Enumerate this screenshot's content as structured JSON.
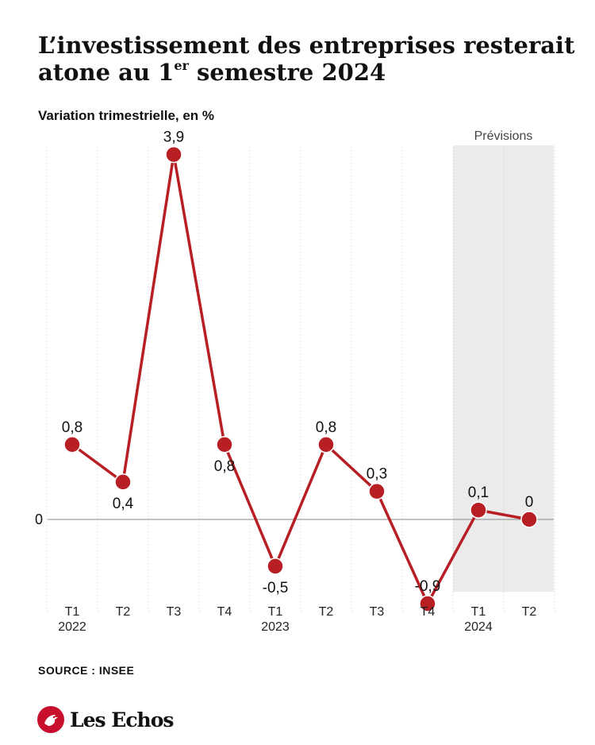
{
  "title_main": "L’investissement des entreprises resterait atone au 1",
  "title_sup": "er",
  "title_end": " semestre 2024",
  "subtitle": "Variation trimestrielle, en %",
  "source": "SOURCE : INSEE",
  "logo_text": "Les Echos",
  "colors": {
    "line": "#b81f25",
    "forecast_band": "#ebebeb",
    "zero_line": "#888888"
  },
  "chart_data": {
    "type": "line",
    "categories": [
      "T1",
      "T2",
      "T3",
      "T4",
      "T1",
      "T2",
      "T3",
      "T4",
      "T1",
      "T2"
    ],
    "years": [
      "2022",
      "",
      "",
      "",
      "2023",
      "",
      "",
      "",
      "2024",
      ""
    ],
    "values": [
      0.8,
      0.4,
      3.9,
      0.8,
      -0.5,
      0.8,
      0.3,
      -0.9,
      0.1,
      0
    ],
    "labels": [
      "0,8",
      "0,4",
      "3,9",
      "0,8",
      "-0,5",
      "0,8",
      "0,3",
      "-0,9",
      "0,1",
      "0"
    ],
    "zero_label": "0",
    "forecast_label": "Prévisions",
    "forecast_from_index": 8,
    "ylim": [
      -0.9,
      3.9
    ]
  }
}
